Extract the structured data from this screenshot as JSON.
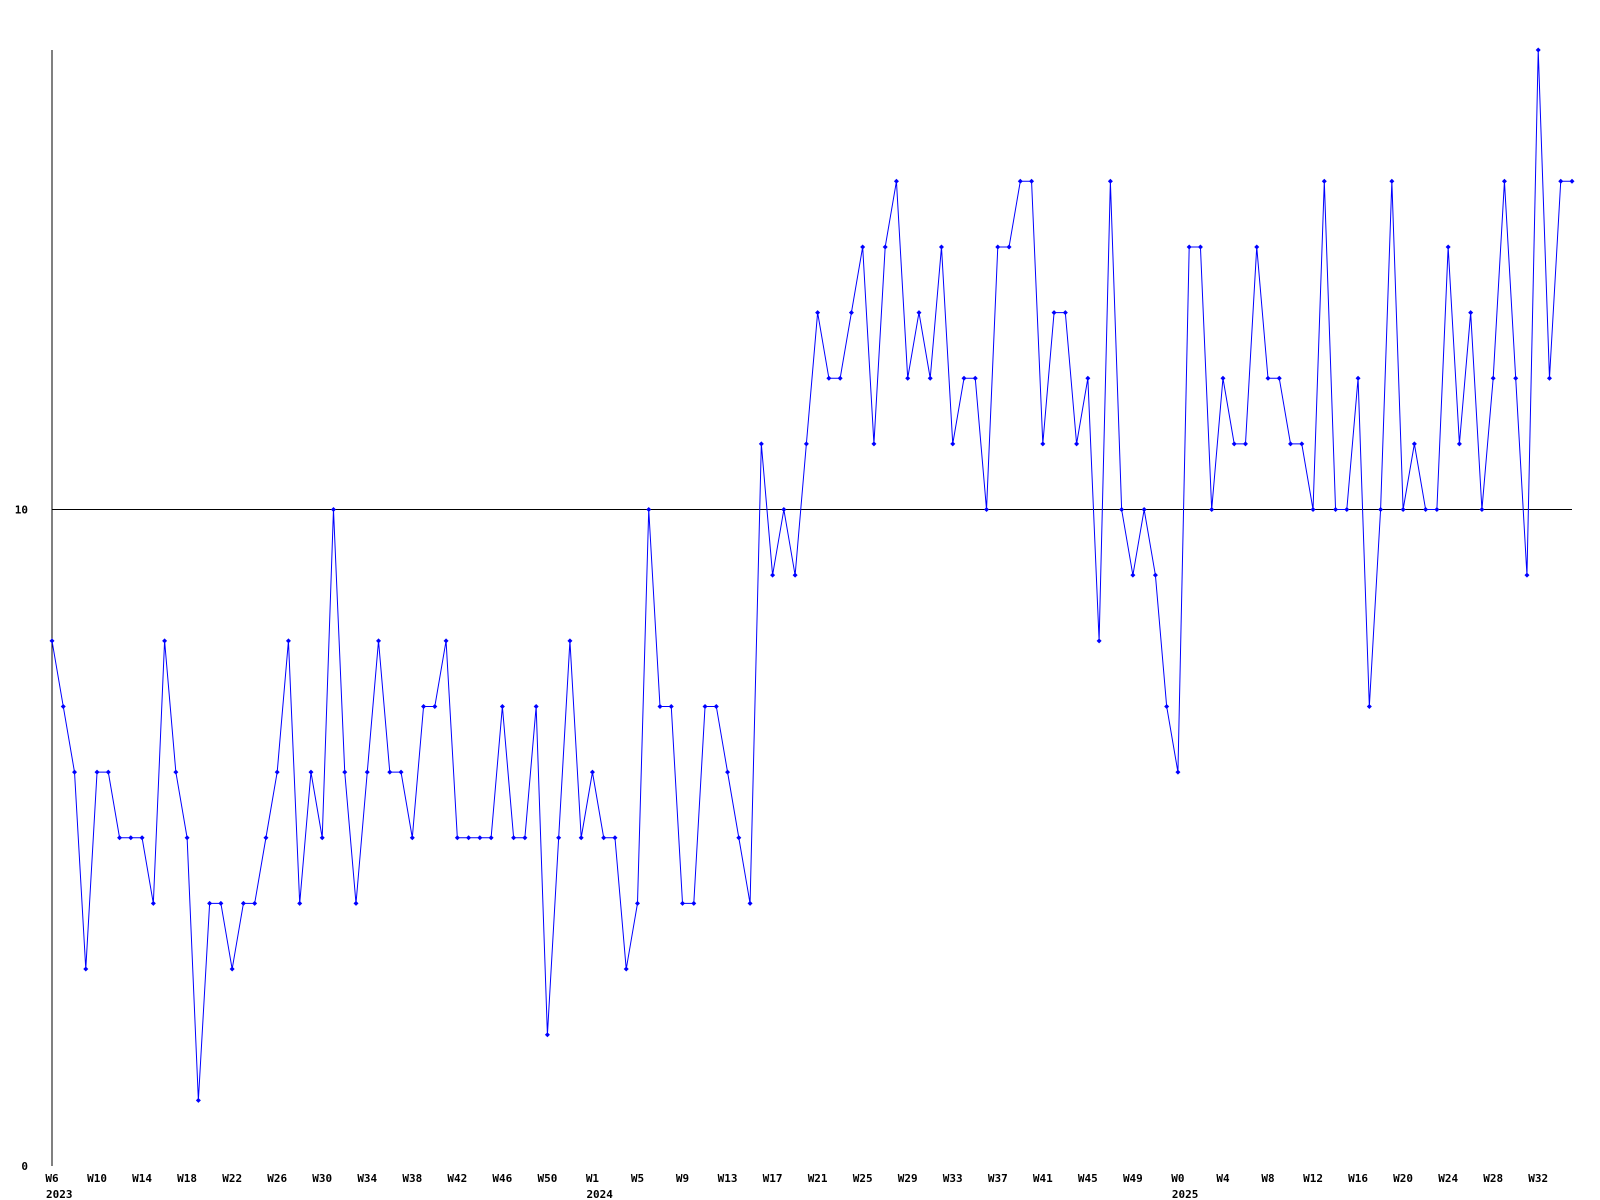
{
  "chart_data": {
    "type": "line",
    "categories": [
      "W6",
      null,
      null,
      null,
      "W10",
      null,
      null,
      null,
      "W14",
      null,
      null,
      null,
      "W18",
      null,
      null,
      null,
      "W22",
      null,
      null,
      null,
      "W26",
      null,
      null,
      null,
      "W30",
      null,
      null,
      null,
      "W34",
      null,
      null,
      null,
      "W38",
      null,
      null,
      null,
      "W42",
      null,
      null,
      null,
      "W46",
      null,
      null,
      null,
      "W50",
      null,
      null,
      null,
      "W1",
      null,
      null,
      null,
      "W5",
      null,
      null,
      null,
      "W9",
      null,
      null,
      null,
      "W13",
      null,
      null,
      null,
      "W17",
      null,
      null,
      null,
      "W21",
      null,
      null,
      null,
      "W25",
      null,
      null,
      null,
      "W29",
      null,
      null,
      null,
      "W33",
      null,
      null,
      null,
      "W37",
      null,
      null,
      null,
      "W41",
      null,
      null,
      null,
      "W45",
      null,
      null,
      null,
      "W49",
      null,
      null,
      null,
      "W0",
      null,
      null,
      null,
      "W4",
      null,
      null,
      null,
      "W8",
      null,
      null,
      null,
      "W12",
      null,
      null,
      null,
      "W16",
      null,
      null,
      null,
      "W20",
      null,
      null,
      null,
      "W24",
      null,
      null,
      null,
      "W28",
      null,
      null,
      null,
      "W32",
      null,
      null,
      null
    ],
    "year_labels": [
      "2023",
      null,
      null,
      null,
      null,
      null,
      null,
      null,
      null,
      null,
      null,
      null,
      null,
      null,
      null,
      null,
      null,
      null,
      null,
      null,
      null,
      null,
      null,
      null,
      null,
      null,
      null,
      null,
      null,
      null,
      null,
      null,
      null,
      null,
      null,
      null,
      null,
      null,
      null,
      null,
      null,
      null,
      null,
      null,
      null,
      null,
      null,
      null,
      "2024",
      null,
      null,
      null,
      null,
      null,
      null,
      null,
      null,
      null,
      null,
      null,
      null,
      null,
      null,
      null,
      null,
      null,
      null,
      null,
      null,
      null,
      null,
      null,
      null,
      null,
      null,
      null,
      null,
      null,
      null,
      null,
      null,
      null,
      null,
      null,
      null,
      null,
      null,
      null,
      null,
      null,
      null,
      null,
      null,
      null,
      null,
      null,
      null,
      null,
      null,
      null,
      "2025",
      null,
      null,
      null,
      null,
      null,
      null,
      null,
      null,
      null,
      null,
      null,
      null,
      null,
      null,
      null,
      null,
      null,
      null,
      null,
      null,
      null,
      null,
      null,
      null,
      null,
      null,
      null,
      null,
      null,
      null,
      null,
      null,
      null,
      null,
      null
    ],
    "values": [
      8,
      7,
      6,
      3,
      6,
      6,
      5,
      5,
      5,
      4,
      8,
      6,
      5,
      1,
      4,
      4,
      3,
      4,
      4,
      5,
      6,
      8,
      4,
      6,
      5,
      10,
      6,
      4,
      6,
      8,
      6,
      6,
      5,
      7,
      7,
      8,
      5,
      5,
      5,
      5,
      7,
      5,
      5,
      7,
      2,
      5,
      8,
      5,
      6,
      5,
      5,
      3,
      4,
      10,
      7,
      7,
      4,
      4,
      7,
      7,
      6,
      5,
      4,
      11,
      9,
      10,
      9,
      11,
      13,
      12,
      12,
      13,
      14,
      11,
      14,
      15,
      12,
      13,
      12,
      14,
      11,
      12,
      12,
      10,
      14,
      14,
      15,
      15,
      11,
      13,
      13,
      11,
      12,
      8,
      15,
      10,
      9,
      10,
      9,
      7,
      6,
      14,
      14,
      10,
      12,
      11,
      11,
      14,
      12,
      12,
      11,
      11,
      10,
      15,
      10,
      10,
      12,
      7,
      10,
      15,
      10,
      11,
      10,
      10,
      14,
      11,
      13,
      10,
      12,
      15,
      12,
      9,
      17,
      12,
      15,
      15
    ],
    "color": "#0000ff",
    "ylim": [
      0,
      17
    ],
    "yticks": [
      0,
      10
    ],
    "grid": true
  }
}
